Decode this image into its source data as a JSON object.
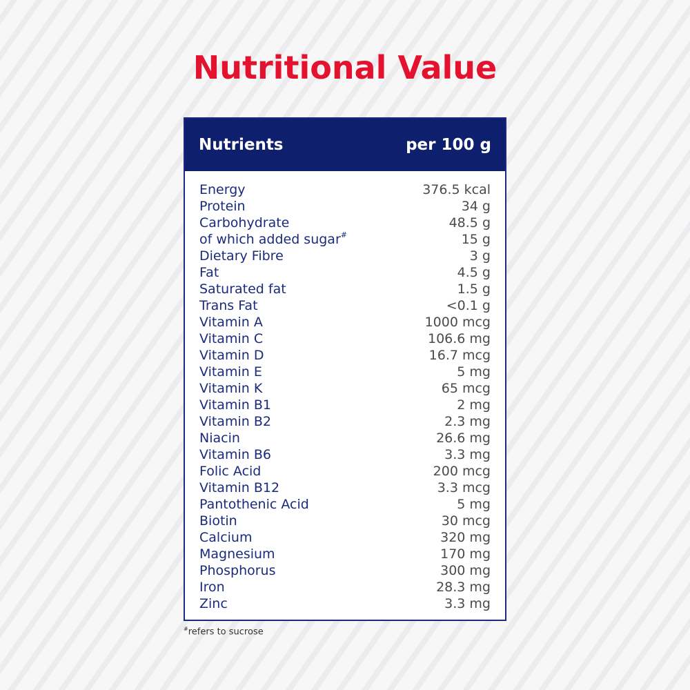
{
  "page": {
    "title": "Nutritional Value",
    "footnote_mark": "#",
    "footnote": "refers to sucrose"
  },
  "table": {
    "header": {
      "nutrients": "Nutrients",
      "per": "per 100 g"
    },
    "rows": [
      {
        "name": "Energy",
        "value": "376.5 kcal"
      },
      {
        "name": "Protein",
        "value": "34 g"
      },
      {
        "name": "Carbohydrate",
        "value": "48.5 g"
      },
      {
        "name": "of which added sugar",
        "mark": "#",
        "value": "15 g"
      },
      {
        "name": "Dietary Fibre",
        "value": "3 g"
      },
      {
        "name": "Fat",
        "value": "4.5 g"
      },
      {
        "name": "Saturated fat",
        "value": "1.5 g"
      },
      {
        "name": "Trans Fat",
        "value": "<0.1 g"
      },
      {
        "name": "Vitamin A",
        "value": "1000 mcg"
      },
      {
        "name": "Vitamin C",
        "value": "106.6 mg"
      },
      {
        "name": "Vitamin D",
        "value": "16.7 mcg"
      },
      {
        "name": "Vitamin E",
        "value": "5 mg"
      },
      {
        "name": "Vitamin K",
        "value": "65 mcg"
      },
      {
        "name": "Vitamin B1",
        "value": "2 mg"
      },
      {
        "name": "Vitamin B2",
        "value": "2.3 mg"
      },
      {
        "name": "Niacin",
        "value": "26.6 mg"
      },
      {
        "name": "Vitamin B6",
        "value": "3.3 mg"
      },
      {
        "name": "Folic Acid",
        "value": "200 mcg"
      },
      {
        "name": "Vitamin B12",
        "value": "3.3 mcg"
      },
      {
        "name": "Pantothenic Acid",
        "value": "5 mg"
      },
      {
        "name": "Biotin",
        "value": "30 mcg"
      },
      {
        "name": "Calcium",
        "value": "320 mg"
      },
      {
        "name": "Magnesium",
        "value": "170 mg"
      },
      {
        "name": "Phosphorus",
        "value": "300 mg"
      },
      {
        "name": "Iron",
        "value": "28.3 mg"
      },
      {
        "name": "Zinc",
        "value": "3.3 mg"
      }
    ]
  },
  "colors": {
    "title": "#e3122f",
    "header_bg": "#0e1f6e",
    "nutrient_text": "#1a2a7c",
    "value_text": "#4a4a4a"
  }
}
